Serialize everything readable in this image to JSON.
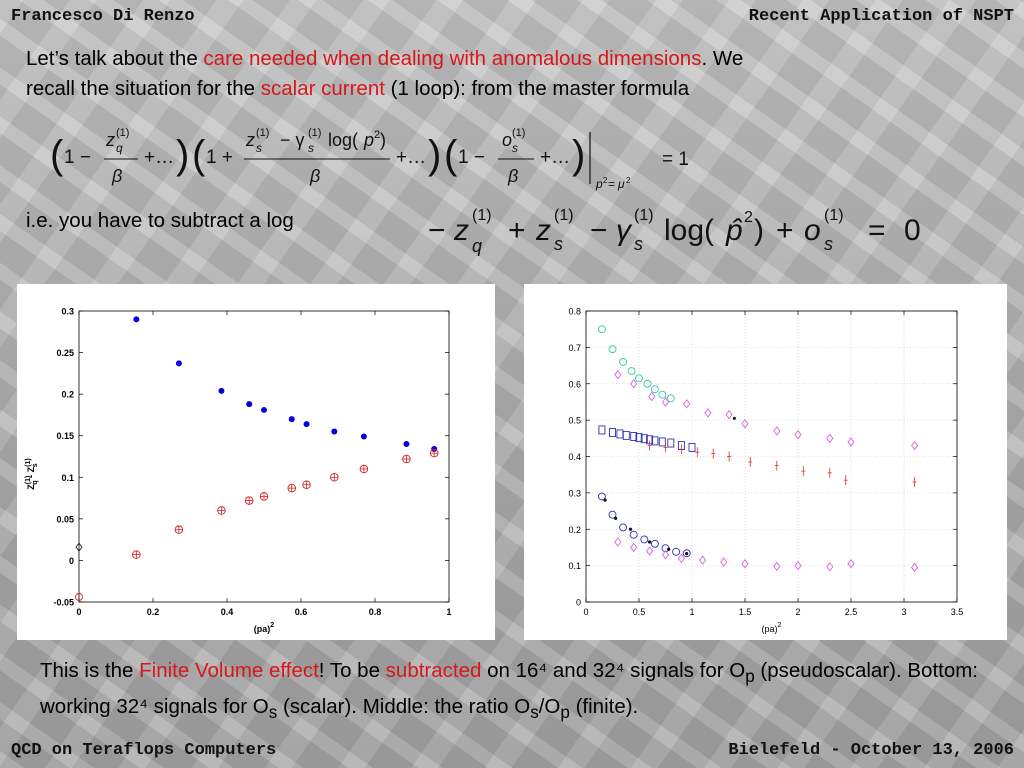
{
  "header": {
    "left": "Francesco Di Renzo",
    "right": "Recent Application of NSPT"
  },
  "footer": {
    "left": "QCD on Teraflops Computers",
    "right": "Bielefeld - October 13, 2006"
  },
  "intro": {
    "p1": "Let’s talk about the ",
    "p1_red": "care needed when dealing with anomalous dimensions",
    "p1_end": ". We",
    "p2": "recall the situation for the ",
    "p2_red": "scalar current",
    "p2_end": " (1 loop): from the master formula"
  },
  "ie_text": "i.e. you have to subtract a log",
  "caption": {
    "pre": "This is the ",
    "red1": "Finite Volume effect",
    "mid1": "! To be ",
    "red2": "subtracted",
    "mid2": " on 16⁴ and 32⁴ signals for O",
    "sub_p": "p",
    "mid3": " (pseudoscalar). Bottom: working 32⁴ signals for O",
    "sub_s": "s",
    "mid4": " (scalar). Middle: the ratio O",
    "sub_s2": "s",
    "slash": "/O",
    "sub_p2": "p",
    "end": " (finite)."
  },
  "chart_data": [
    {
      "type": "scatter",
      "ylabel": "Z_q^(1) - Z_s^(1)",
      "xlabel": "(pa)^2",
      "xlim": [
        0,
        1
      ],
      "ylim": [
        -0.05,
        0.3
      ],
      "xticks": [
        "0",
        "0.2",
        "0.4",
        "0.6",
        "0.8",
        "1"
      ],
      "yticks": [
        "-0.05",
        "0",
        "0.05",
        "0.1",
        "0.15",
        "0.2",
        "0.25",
        "0.3"
      ],
      "series": [
        {
          "marker": "filled-dot",
          "color": "#0000e0",
          "x": [
            0.155,
            0.27,
            0.385,
            0.46,
            0.5,
            0.575,
            0.615,
            0.69,
            0.77,
            0.885,
            0.96
          ],
          "y": [
            0.29,
            0.237,
            0.204,
            0.188,
            0.181,
            0.17,
            0.164,
            0.155,
            0.149,
            0.14,
            0.134
          ]
        },
        {
          "marker": "circle-plus",
          "color": "#d62020",
          "x": [
            0.155,
            0.27,
            0.385,
            0.46,
            0.5,
            0.575,
            0.615,
            0.69,
            0.77,
            0.885,
            0.96
          ],
          "y": [
            0.007,
            0.037,
            0.06,
            0.072,
            0.077,
            0.087,
            0.091,
            0.1,
            0.11,
            0.122,
            0.129
          ]
        },
        {
          "marker": "diamond-open",
          "color": "#222222",
          "x": [
            0
          ],
          "y": [
            0.016
          ]
        },
        {
          "marker": "circle-open",
          "color": "#d62020",
          "x": [
            0
          ],
          "y": [
            -0.044
          ]
        }
      ]
    },
    {
      "type": "scatter",
      "xlabel": "(pa)^2",
      "xlim": [
        0,
        3.5
      ],
      "ylim": [
        0,
        0.8
      ],
      "xticks": [
        "0",
        "0.5",
        "1",
        "1.5",
        "2",
        "2.5",
        "3",
        "3.5"
      ],
      "yticks": [
        "0",
        "0.1",
        "0.2",
        "0.3",
        "0.4",
        "0.5",
        "0.6",
        "0.7",
        "0.8"
      ],
      "grid": true,
      "series": [
        {
          "marker": "circle-open",
          "color": "#33c9a0",
          "x": [
            0.15,
            0.25,
            0.35,
            0.43,
            0.5,
            0.58,
            0.65,
            0.72,
            0.8
          ],
          "y": [
            0.75,
            0.695,
            0.66,
            0.635,
            0.615,
            0.6,
            0.585,
            0.57,
            0.56
          ]
        },
        {
          "marker": "diamond-open",
          "color": "#e060e0",
          "x": [
            0.3,
            0.45,
            0.62,
            0.75,
            0.95,
            1.15,
            1.35,
            1.5,
            1.8,
            2.0,
            2.3,
            2.5,
            3.1
          ],
          "y": [
            0.625,
            0.6,
            0.565,
            0.55,
            0.545,
            0.52,
            0.515,
            0.49,
            0.47,
            0.46,
            0.45,
            0.44,
            0.43
          ]
        },
        {
          "marker": "dot",
          "color": "#222222",
          "x": [
            1.4
          ],
          "y": [
            0.505
          ]
        },
        {
          "marker": "square-open",
          "color": "#3030b0",
          "x": [
            0.15,
            0.25,
            0.32,
            0.38,
            0.45,
            0.5,
            0.55,
            0.6,
            0.65,
            0.72,
            0.8,
            0.9,
            1.0
          ],
          "y": [
            0.473,
            0.466,
            0.462,
            0.458,
            0.455,
            0.452,
            0.449,
            0.446,
            0.443,
            0.44,
            0.437,
            0.43,
            0.425
          ]
        },
        {
          "marker": "plus-errbar",
          "color": "#e03030",
          "x": [
            0.6,
            0.75,
            0.9,
            1.05,
            1.2,
            1.35,
            1.55,
            1.8,
            2.05,
            2.3,
            2.45,
            3.1
          ],
          "y": [
            0.43,
            0.425,
            0.42,
            0.412,
            0.408,
            0.4,
            0.385,
            0.375,
            0.36,
            0.355,
            0.335,
            0.33
          ]
        },
        {
          "marker": "circle-open",
          "color": "#3030b0",
          "x": [
            0.15,
            0.25,
            0.35,
            0.45,
            0.55,
            0.65,
            0.75,
            0.85,
            0.95
          ],
          "y": [
            0.29,
            0.24,
            0.205,
            0.185,
            0.172,
            0.16,
            0.148,
            0.138,
            0.134
          ]
        },
        {
          "marker": "dot",
          "color": "#111111",
          "x": [
            0.18,
            0.28,
            0.42,
            0.6,
            0.78,
            0.95
          ],
          "y": [
            0.28,
            0.23,
            0.2,
            0.165,
            0.145,
            0.133
          ]
        },
        {
          "marker": "diamond-open",
          "color": "#e060e0",
          "x": [
            0.3,
            0.45,
            0.6,
            0.75,
            0.9,
            1.1,
            1.3,
            1.5,
            1.8,
            2.0,
            2.3,
            2.5,
            3.1
          ],
          "y": [
            0.165,
            0.15,
            0.14,
            0.13,
            0.12,
            0.115,
            0.11,
            0.105,
            0.098,
            0.1,
            0.097,
            0.105,
            0.095
          ]
        }
      ]
    }
  ],
  "colors": {
    "accent_red": "#d8171c"
  }
}
